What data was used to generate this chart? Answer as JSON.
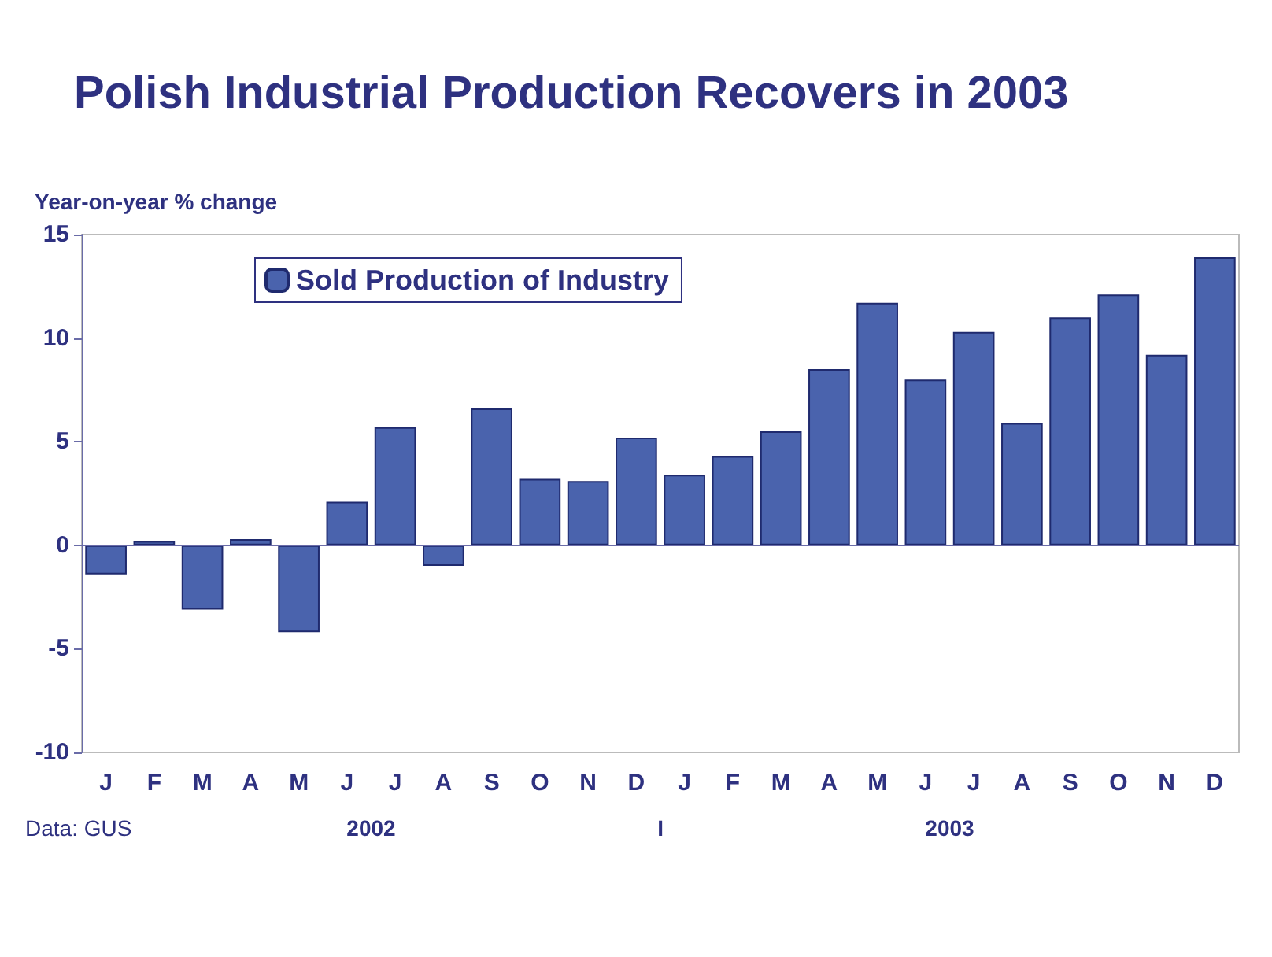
{
  "chart_data": {
    "type": "bar",
    "title": "Polish Industrial Production Recovers in 2003",
    "ylabel": "Year-on-year % change",
    "categories": [
      "J",
      "F",
      "M",
      "A",
      "M",
      "J",
      "J",
      "A",
      "S",
      "O",
      "N",
      "D",
      "J",
      "F",
      "M",
      "A",
      "M",
      "J",
      "J",
      "A",
      "S",
      "O",
      "N",
      "D"
    ],
    "series": [
      {
        "name": "Sold Production of Industry",
        "color": "#4a63ad",
        "values": [
          -1.4,
          0.2,
          -3.1,
          0.3,
          -4.2,
          2.1,
          5.7,
          -1.0,
          6.6,
          3.2,
          3.1,
          5.2,
          3.4,
          4.3,
          5.5,
          8.5,
          11.7,
          8.0,
          10.3,
          5.9,
          11.0,
          12.1,
          9.2,
          13.9
        ]
      }
    ],
    "ref_lines": [
      {
        "axis": "y",
        "value": 0,
        "color": "#6a6ca8"
      }
    ],
    "ylim": [
      -10,
      15
    ],
    "yticks": [
      -10,
      -5,
      0,
      5,
      10,
      15
    ],
    "grid": false,
    "legend": "top left",
    "annotations": [
      "Data: GUS",
      "2002",
      "I",
      "2003"
    ]
  }
}
